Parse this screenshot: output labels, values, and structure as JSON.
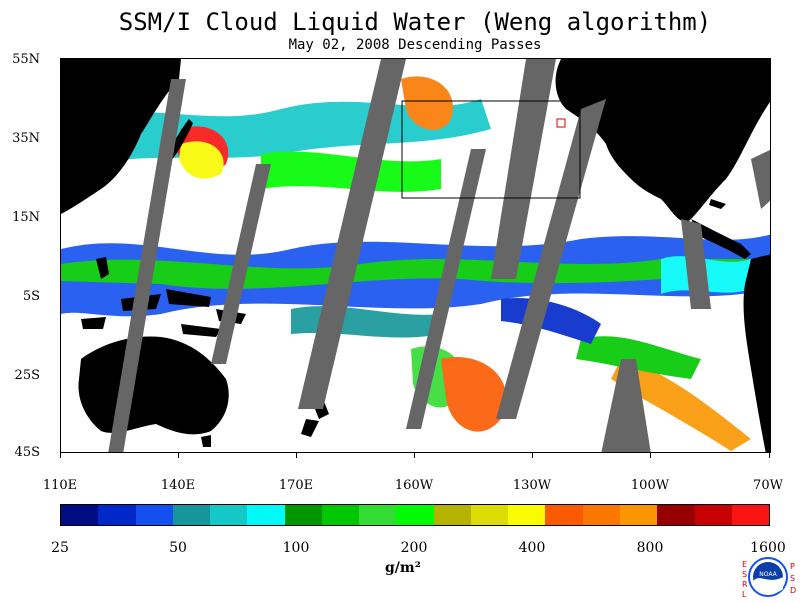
{
  "title": "SSM/I Cloud Liquid Water (Weng algorithm)",
  "subtitle": "May 02, 2008  Descending Passes",
  "lat_labels": [
    "55N",
    "35N",
    "15N",
    "5S",
    "25S",
    "45S"
  ],
  "lon_labels": [
    "110E",
    "140E",
    "170E",
    "160W",
    "130W",
    "100W",
    "70W"
  ],
  "colorbar": {
    "colors": [
      "#000c82",
      "#0028c8",
      "#1450f0",
      "#14969a",
      "#14c8c8",
      "#00fafa",
      "#009600",
      "#00c800",
      "#32dc32",
      "#00fa00",
      "#b4b400",
      "#dcdc00",
      "#fafa00",
      "#fa5a00",
      "#fa7800",
      "#fa9600",
      "#960000",
      "#c80000",
      "#fa1414"
    ],
    "labels": [
      "25",
      "50",
      "100",
      "200",
      "400",
      "800",
      "1600"
    ],
    "units": "g/m²"
  },
  "logo": {
    "left_text": "ESRL",
    "right_text": "PSD",
    "center_text": "NOAA"
  }
}
